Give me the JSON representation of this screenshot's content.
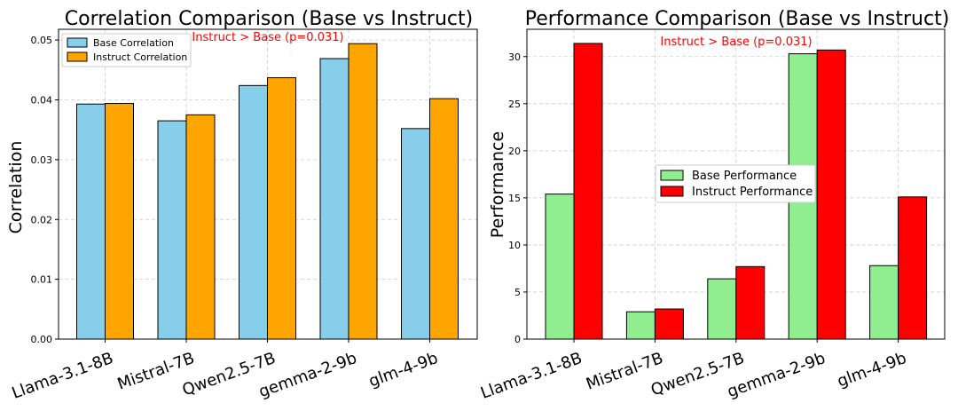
{
  "chart_data": [
    {
      "type": "bar",
      "title": "Correlation Comparison (Base vs Instruct)",
      "xlabel": "",
      "ylabel": "Correlation",
      "ylim": [
        0,
        0.0518
      ],
      "yticks": [
        "0.00",
        "0.01",
        "0.02",
        "0.03",
        "0.04",
        "0.05"
      ],
      "ytick_values": [
        0,
        0.01,
        0.02,
        0.03,
        0.04,
        0.05
      ],
      "categories": [
        "Llama-3.1-8B",
        "Mistral-7B",
        "Qwen2.5-7B",
        "gemma-2-9b",
        "glm-4-9b"
      ],
      "series": [
        {
          "name": "Base Correlation",
          "color": "#87CEEB",
          "values": [
            0.0393,
            0.0365,
            0.0424,
            0.0469,
            0.0352
          ]
        },
        {
          "name": "Instruct Correlation",
          "color": "#FFA500",
          "values": [
            0.0394,
            0.0375,
            0.0437,
            0.0494,
            0.0402
          ]
        }
      ],
      "legend_position": "top-left",
      "annotation": "Instruct > Base (p=0.031)",
      "annotation_color": "#FF0000",
      "grid": true
    },
    {
      "type": "bar",
      "title": "Performance Comparison (Base vs Instruct)",
      "xlabel": "",
      "ylabel": "Performance",
      "ylim": [
        0,
        32.9
      ],
      "yticks": [
        "0",
        "5",
        "10",
        "15",
        "20",
        "25",
        "30"
      ],
      "ytick_values": [
        0,
        5,
        10,
        15,
        20,
        25,
        30
      ],
      "categories": [
        "Llama-3.1-8B",
        "Mistral-7B",
        "Qwen2.5-7B",
        "gemma-2-9b",
        "glm-4-9b"
      ],
      "series": [
        {
          "name": "Base Performance",
          "color": "#90EE90",
          "values": [
            15.4,
            2.9,
            6.4,
            30.3,
            7.8
          ]
        },
        {
          "name": "Instruct Performance",
          "color": "#FF0000",
          "values": [
            31.4,
            3.2,
            7.7,
            30.7,
            15.1
          ]
        }
      ],
      "legend_position": "center",
      "annotation": "Instruct > Base (p=0.031)",
      "annotation_color": "#FF0000",
      "grid": true
    }
  ]
}
